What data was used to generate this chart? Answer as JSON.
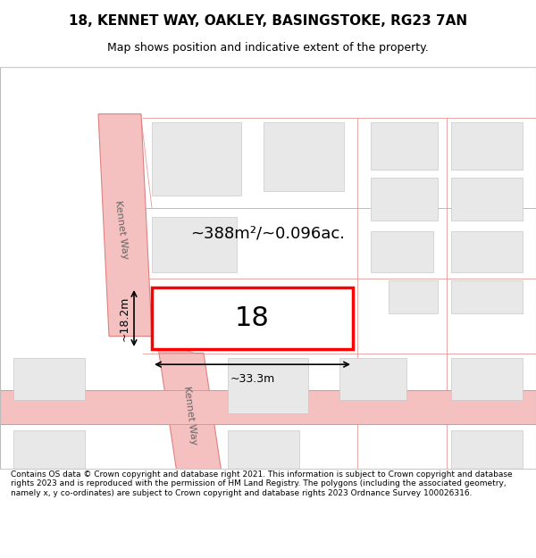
{
  "title": "18, KENNET WAY, OAKLEY, BASINGSTOKE, RG23 7AN",
  "subtitle": "Map shows position and indicative extent of the property.",
  "footer": "Contains OS data © Crown copyright and database right 2021. This information is subject to Crown copyright and database rights 2023 and is reproduced with the permission of HM Land Registry. The polygons (including the associated geometry, namely x, y co-ordinates) are subject to Crown copyright and database rights 2023 Ordnance Survey 100026316.",
  "bg_color": "#ffffff",
  "map_bg": "#f8f8f8",
  "road_color": "#f5c0c0",
  "road_edge_color": "#e08080",
  "building_fill": "#e8e8e8",
  "building_edge": "#c8c8c8",
  "highlight_edge": "#ff0000",
  "highlight_lw": 2.5,
  "label_18": "18",
  "area_label": "~388m²/~0.096ac.",
  "dim_width": "~33.3m",
  "dim_height": "~18.2m",
  "street_label_upper": "Kennet Way",
  "street_label_lower": "Kennet Way"
}
